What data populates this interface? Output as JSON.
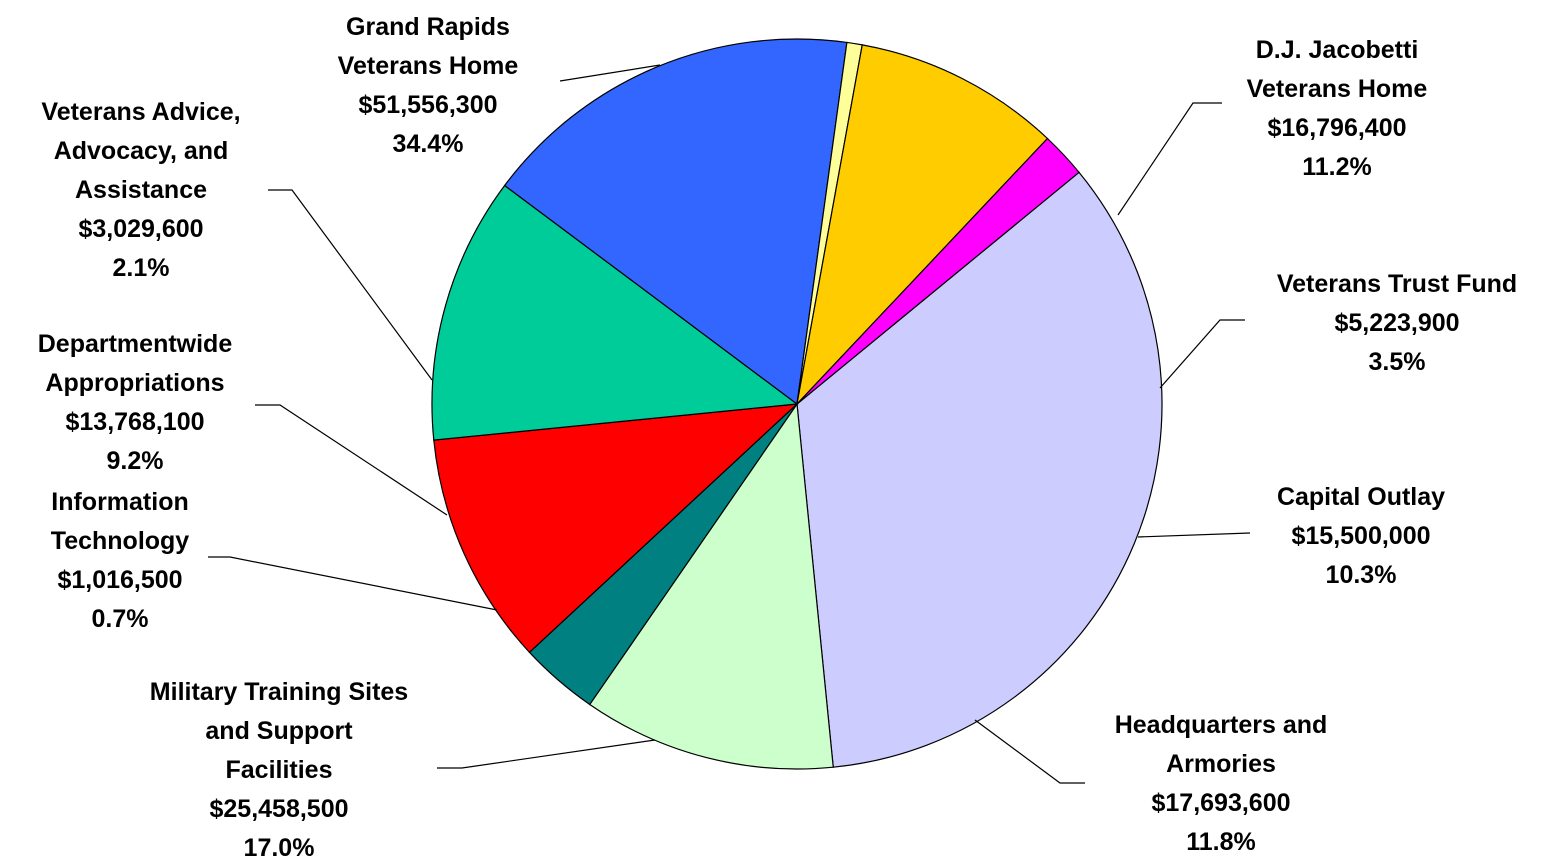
{
  "chart_data": {
    "type": "pie",
    "slices": [
      {
        "lines": [
          "Grand Rapids",
          "Veterans Home"
        ],
        "value_label": "$51,556,300",
        "pct_label": "34.4%",
        "value": 51556300,
        "percent": 34.4,
        "color": "#CCCCFF"
      },
      {
        "lines": [
          "D.J. Jacobetti",
          "Veterans Home"
        ],
        "value_label": "$16,796,400",
        "pct_label": "11.2%",
        "value": 16796400,
        "percent": 11.2,
        "color": "#CCFFCC"
      },
      {
        "lines": [
          "Veterans Trust Fund"
        ],
        "value_label": "$5,223,900",
        "pct_label": "3.5%",
        "value": 5223900,
        "percent": 3.5,
        "color": "#008080"
      },
      {
        "lines": [
          "Capital Outlay"
        ],
        "value_label": "$15,500,000",
        "pct_label": "10.3%",
        "value": 15500000,
        "percent": 10.3,
        "color": "#FF0000"
      },
      {
        "lines": [
          "Headquarters and",
          "Armories"
        ],
        "value_label": "$17,693,600",
        "pct_label": "11.8%",
        "value": 17693600,
        "percent": 11.8,
        "color": "#00CC99"
      },
      {
        "lines": [
          "Military Training Sites",
          "and Support",
          "Facilities"
        ],
        "value_label": "$25,458,500",
        "pct_label": "17.0%",
        "value": 25458500,
        "percent": 17.0,
        "color": "#3366FF"
      },
      {
        "lines": [
          "Information",
          "Technology"
        ],
        "value_label": "$1,016,500",
        "pct_label": "0.7%",
        "value": 1016500,
        "percent": 0.7,
        "color": "#FFFF99"
      },
      {
        "lines": [
          "Departmentwide",
          "Appropriations"
        ],
        "value_label": "$13,768,100",
        "pct_label": "9.2%",
        "value": 13768100,
        "percent": 9.2,
        "color": "#FFCC00"
      },
      {
        "lines": [
          "Veterans Advice,",
          "Advocacy, and",
          "Assistance"
        ],
        "value_label": "$3,029,600",
        "pct_label": "2.1%",
        "value": 3029600,
        "percent": 2.1,
        "color": "#FF00FF"
      }
    ]
  }
}
